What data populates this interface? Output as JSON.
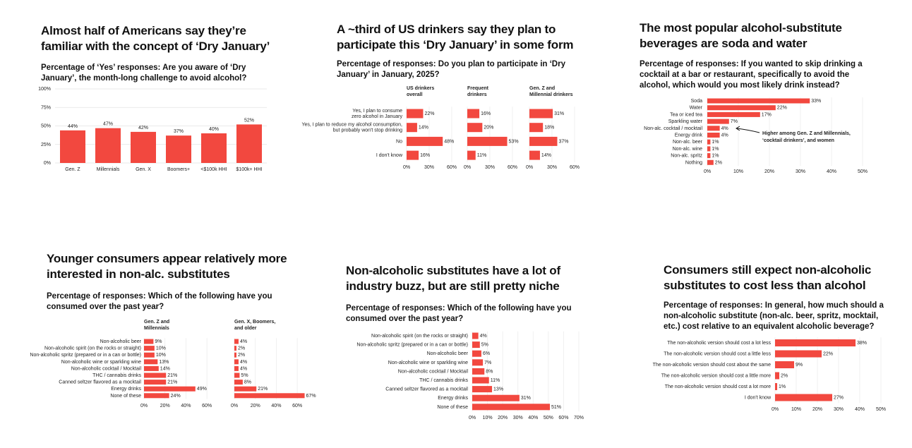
{
  "chart_data": [
    {
      "type": "bar",
      "title": "Almost half of Americans say they’re familiar with the concept of ‘Dry January’",
      "subtitle": "Percentage of ‘Yes’ responses: Are you aware of ‘Dry January’, the month-long challenge to avoid alcohol?",
      "categories": [
        "Gen. Z",
        "Millennials",
        "Gen. X",
        "Boomers+",
        "<$100k HHI",
        "$100k+ HHI"
      ],
      "values": [
        44,
        47,
        42,
        37,
        40,
        52
      ],
      "value_labels": [
        "44%",
        "47%",
        "42%",
        "37%",
        "40%",
        "52%"
      ],
      "color": "#f2483f",
      "grid": true,
      "ylim": [
        0,
        100
      ],
      "yticks": [
        {
          "value": 0,
          "label": "0%"
        },
        {
          "value": 25,
          "label": "25%"
        },
        {
          "value": 50,
          "label": "50%"
        },
        {
          "value": 75,
          "label": "75%"
        },
        {
          "value": 100,
          "label": "100%"
        }
      ]
    },
    {
      "type": "bar",
      "horizontal": true,
      "title": "A ~third of US drinkers say they plan to participate this ‘Dry January’ in some form",
      "subtitle": "Percentage of responses: Do you plan to participate in ‘Dry January’ in January, 2025?",
      "categories": [
        "Yes, I plan to consume\nzero alcohol in January",
        "Yes, I plan to reduce my alcohol consumption,\nbut probably won't stop drinking",
        "No",
        "I don't know"
      ],
      "series": [
        {
          "name": "US drinkers\noverall",
          "color": "#f2483f",
          "values": [
            22,
            14,
            48,
            16
          ],
          "value_labels": [
            "22%",
            "14%",
            "48%",
            "16%"
          ]
        },
        {
          "name": "Frequent\ndrinkers",
          "color": "#f2483f",
          "values": [
            16,
            20,
            53,
            11
          ],
          "value_labels": [
            "16%",
            "20%",
            "53%",
            "11%"
          ]
        },
        {
          "name": "Gen. Z and\nMillennial drinkers",
          "color": "#f2483f",
          "values": [
            31,
            18,
            37,
            14
          ],
          "value_labels": [
            "31%",
            "18%",
            "37%",
            "14%"
          ]
        }
      ],
      "grid": true,
      "xlim": [
        0,
        60
      ],
      "xticks": [
        {
          "value": 0,
          "label": "0%"
        },
        {
          "value": 30,
          "label": "30%"
        },
        {
          "value": 60,
          "label": "60%"
        }
      ]
    },
    {
      "type": "bar",
      "horizontal": true,
      "title": "The most popular alcohol-substitute beverages are soda and water",
      "subtitle": "Percentage of responses: If you wanted to skip drinking a cocktail at a bar or restaurant, specifically to avoid the alcohol, which would you most likely drink instead?",
      "categories": [
        "Soda",
        "Water",
        "Tea or iced tea",
        "Sparkling water",
        "Non-alc. cocktail / mocktail",
        "Energy drink",
        "Non-alc. beer",
        "Non-alc. wine",
        "Non-alc. spritz",
        "Nothing"
      ],
      "values": [
        33,
        22,
        17,
        7,
        4,
        4,
        1,
        1,
        1,
        2
      ],
      "value_labels": [
        "33%",
        "22%",
        "17%",
        "7%",
        "4%",
        "4%",
        "1%",
        "1%",
        "1%",
        "2%"
      ],
      "color": "#f2483f",
      "grid": true,
      "annotation": "Higher among Gen. Z and Millennials,\n‘cocktail drinkers’, and women",
      "xlim": [
        0,
        50
      ],
      "xticks": [
        {
          "value": 0,
          "label": "0%"
        },
        {
          "value": 10,
          "label": "10%"
        },
        {
          "value": 20,
          "label": "20%"
        },
        {
          "value": 30,
          "label": "30%"
        },
        {
          "value": 40,
          "label": "40%"
        },
        {
          "value": 50,
          "label": "50%"
        }
      ]
    },
    {
      "type": "bar",
      "horizontal": true,
      "title": "Younger consumers appear relatively more interested in non-alc. substitutes",
      "subtitle": "Percentage of responses: Which of the following have you consumed over the past year?",
      "categories": [
        "Non-alcoholic beer",
        "Non-alcoholic spirit (on the rocks or straight)",
        "Non-alcoholic spritz (prepared or in a can or bottle)",
        "Non-alcoholic wine or sparkling wine",
        "Non-alcoholic cocktail / Mocktail",
        "THC / cannabis drinks",
        "Canned seltzer flavored as a mocktail",
        "Energy drinks",
        "None of these"
      ],
      "series": [
        {
          "name": "Gen. Z and\nMillennials",
          "color": "#f2483f",
          "values": [
            9,
            10,
            10,
            13,
            14,
            21,
            21,
            49,
            24
          ],
          "value_labels": [
            "9%",
            "10%",
            "10%",
            "13%",
            "14%",
            "21%",
            "21%",
            "49%",
            "24%"
          ]
        },
        {
          "name": "Gen. X, Boomers,\nand older",
          "color": "#f2483f",
          "values": [
            4,
            2,
            2,
            4,
            4,
            5,
            8,
            21,
            67
          ],
          "value_labels": [
            "4%",
            "2%",
            "2%",
            "4%",
            "4%",
            "5%",
            "8%",
            "21%",
            "67%"
          ]
        }
      ],
      "grid": true,
      "xlim": [
        0,
        70
      ],
      "xticks": [
        {
          "value": 0,
          "label": "0%"
        },
        {
          "value": 20,
          "label": "20%"
        },
        {
          "value": 40,
          "label": "40%"
        },
        {
          "value": 60,
          "label": "60%"
        }
      ]
    },
    {
      "type": "bar",
      "horizontal": true,
      "title": "Non-alcoholic substitutes have a lot of industry buzz, but are still pretty niche",
      "subtitle": "Percentage of responses: Which of the following have you consumed over the past year?",
      "categories": [
        "Non-alcoholic spirit (on the rocks or straight)",
        "Non-alcoholic spritz (prepared or in a can or bottle)",
        "Non-alcoholic beer",
        "Non-alcoholic wine or sparkling wine",
        "Non-alcoholic cocktail / Mocktail",
        "THC / cannabis drinks",
        "Canned seltzer flavored as a mocktail",
        "Energy drinks",
        "None of these"
      ],
      "values": [
        4,
        5,
        6,
        7,
        8,
        11,
        13,
        31,
        51
      ],
      "value_labels": [
        "4%",
        "5%",
        "6%",
        "7%",
        "8%",
        "11%",
        "13%",
        "31%",
        "51%"
      ],
      "color": "#f2483f",
      "grid": true,
      "xlim": [
        0,
        70
      ],
      "xticks": [
        {
          "value": 0,
          "label": "0%"
        },
        {
          "value": 10,
          "label": "10%"
        },
        {
          "value": 20,
          "label": "20%"
        },
        {
          "value": 30,
          "label": "30%"
        },
        {
          "value": 40,
          "label": "40%"
        },
        {
          "value": 50,
          "label": "50%"
        },
        {
          "value": 60,
          "label": "60%"
        },
        {
          "value": 70,
          "label": "70%"
        }
      ]
    },
    {
      "type": "bar",
      "horizontal": true,
      "title": "Consumers still expect non-alcoholic substitutes to cost less than alcohol",
      "subtitle": "Percentage of responses: In general, how much should a non-alcoholic substitute (non-alc. beer, spritz, mocktail, etc.) cost relative to an equivalent alcoholic beverage?",
      "categories": [
        "The non-alcoholic version should cost a lot less",
        "The non-alcoholic version should cost a little less",
        "The non-alcoholic version should cost about the same",
        "The non-alcoholic version should cost a little more",
        "The non-alcoholic version should cost a lot more",
        "I don't know"
      ],
      "values": [
        38,
        22,
        9,
        2,
        1,
        27
      ],
      "value_labels": [
        "38%",
        "22%",
        "9%",
        "2%",
        "1%",
        "27%"
      ],
      "color": "#f2483f",
      "grid": true,
      "xlim": [
        0,
        50
      ],
      "xticks": [
        {
          "value": 0,
          "label": "0%"
        },
        {
          "value": 10,
          "label": "10%"
        },
        {
          "value": 20,
          "label": "20%"
        },
        {
          "value": 30,
          "label": "30%"
        },
        {
          "value": 40,
          "label": "40%"
        },
        {
          "value": 50,
          "label": "50%"
        }
      ]
    }
  ]
}
